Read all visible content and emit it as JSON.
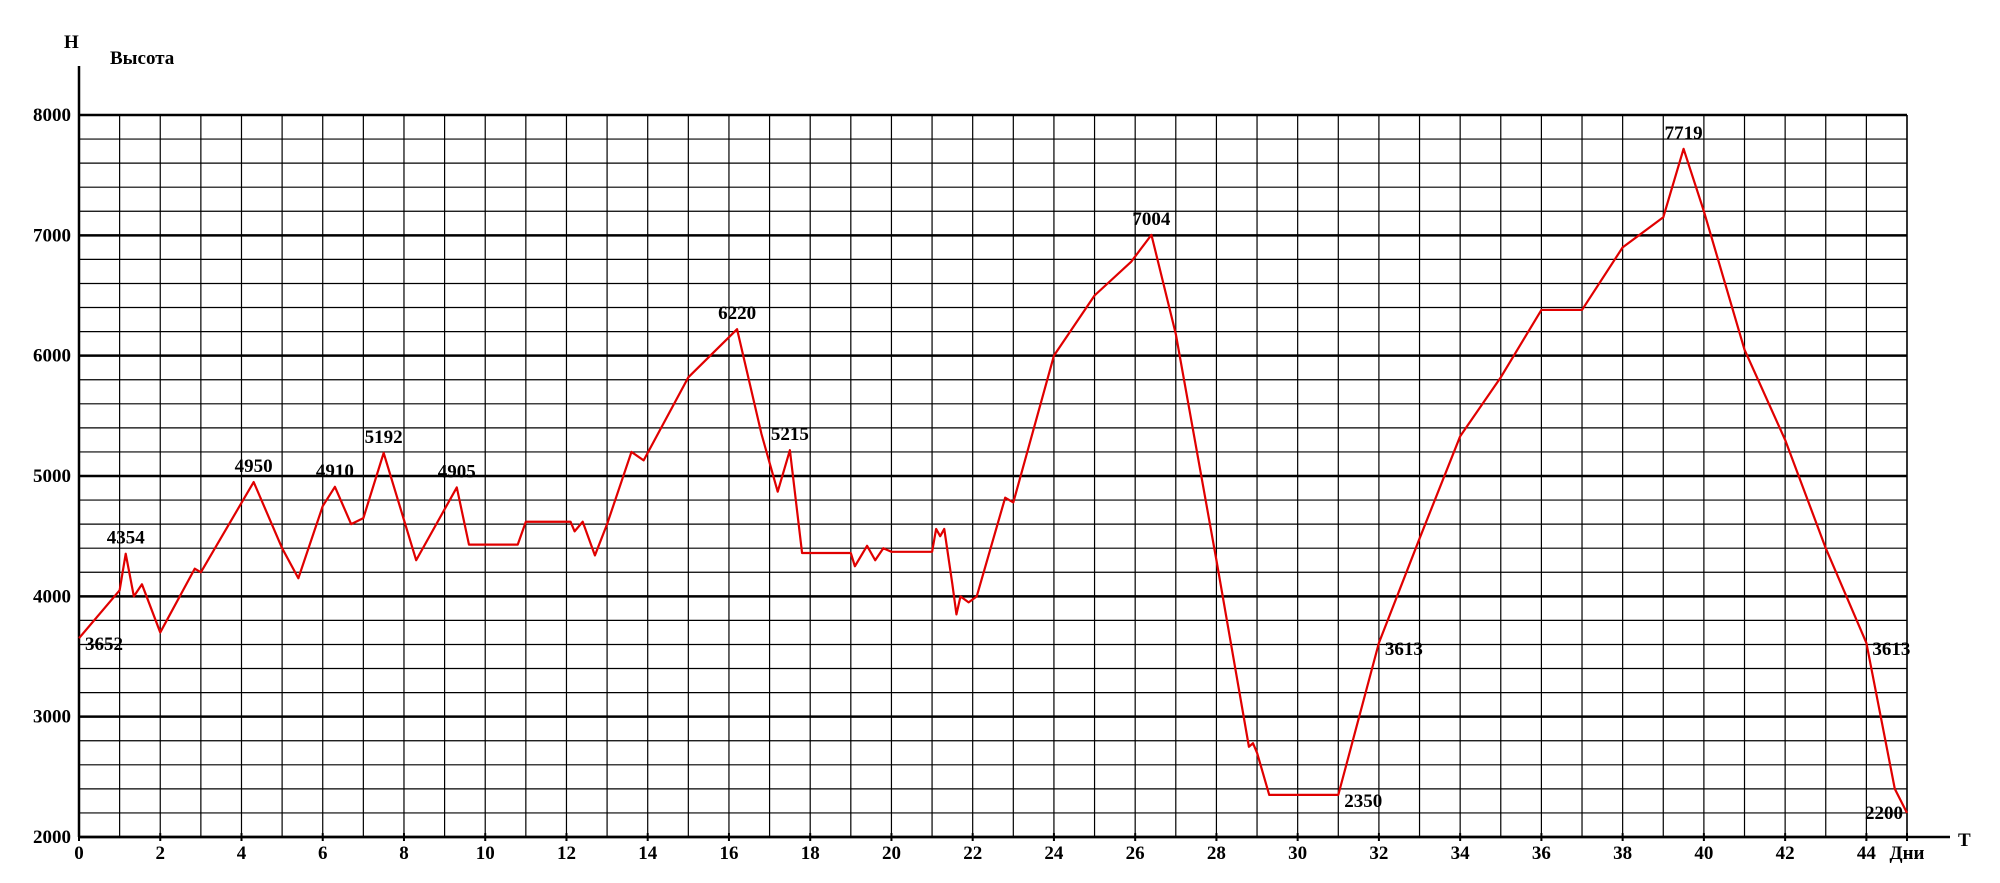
{
  "chart_data": {
    "type": "line",
    "ylabel": "H",
    "ylabel_sub": "Высота",
    "xlabel": "T",
    "x": [
      0,
      1,
      1.15,
      1.35,
      1.55,
      2,
      2.85,
      3,
      4.3,
      5,
      5.4,
      6,
      6.3,
      6.7,
      7,
      7.5,
      8.3,
      9.3,
      9.6,
      10.8,
      11,
      12.1,
      12.2,
      12.4,
      12.7,
      13,
      13.6,
      13.9,
      15,
      16.2,
      16.8,
      17.2,
      17.5,
      17.8,
      19,
      19.1,
      19.4,
      19.6,
      19.8,
      20,
      21,
      21.1,
      21.2,
      21.3,
      21.5,
      21.6,
      21.7,
      21.9,
      22.1,
      22.8,
      23,
      24,
      25,
      25.9,
      26.4,
      27,
      28,
      28.8,
      28.9,
      29,
      29.3,
      31,
      32,
      33,
      34,
      35,
      36,
      37,
      38,
      39,
      39.5,
      40,
      41,
      42,
      43,
      44,
      44.7,
      45
    ],
    "values": [
      3652,
      4050,
      4354,
      4000,
      4100,
      3700,
      4230,
      4200,
      4950,
      4400,
      4150,
      4750,
      4910,
      4600,
      4650,
      5192,
      4300,
      4905,
      4430,
      4430,
      4620,
      4620,
      4540,
      4620,
      4340,
      4600,
      5200,
      5130,
      5820,
      6220,
      5350,
      4870,
      5215,
      4360,
      4360,
      4250,
      4420,
      4300,
      4400,
      4370,
      4370,
      4560,
      4500,
      4560,
      4100,
      3850,
      4000,
      3950,
      4000,
      4820,
      4780,
      6000,
      6500,
      6780,
      7004,
      6180,
      4300,
      2750,
      2780,
      2700,
      2350,
      2350,
      3613,
      4480,
      5330,
      5820,
      6380,
      6380,
      6900,
      7150,
      7719,
      7200,
      6050,
      5300,
      4400,
      3613,
      2400,
      2200
    ],
    "value_labels": [
      "3652",
      null,
      "4354",
      null,
      null,
      null,
      null,
      null,
      "4950",
      null,
      null,
      null,
      "4910",
      null,
      null,
      "5192",
      null,
      "4905",
      null,
      null,
      null,
      null,
      null,
      null,
      null,
      null,
      null,
      null,
      null,
      "6220",
      null,
      null,
      "5215",
      null,
      null,
      null,
      null,
      null,
      null,
      null,
      null,
      null,
      null,
      null,
      null,
      null,
      null,
      null,
      null,
      null,
      null,
      null,
      null,
      null,
      "7004",
      null,
      null,
      null,
      null,
      null,
      null,
      "2350",
      "3613",
      null,
      null,
      null,
      null,
      null,
      null,
      null,
      "7719",
      null,
      null,
      null,
      null,
      "3613",
      null,
      "2200"
    ],
    "color": "#e00000",
    "xlim": [
      0,
      45
    ],
    "ylim": [
      2000,
      8000
    ],
    "xticks": [
      0,
      2,
      4,
      6,
      8,
      10,
      12,
      14,
      16,
      18,
      20,
      22,
      24,
      26,
      28,
      30,
      32,
      34,
      36,
      38,
      40,
      42,
      44,
      {
        "value": 45,
        "label": "Дни"
      }
    ],
    "yticks": [
      2000,
      3000,
      4000,
      5000,
      6000,
      7000,
      8000
    ],
    "grid": true,
    "ygrid_minor": 5,
    "xgrid_step": 1
  }
}
